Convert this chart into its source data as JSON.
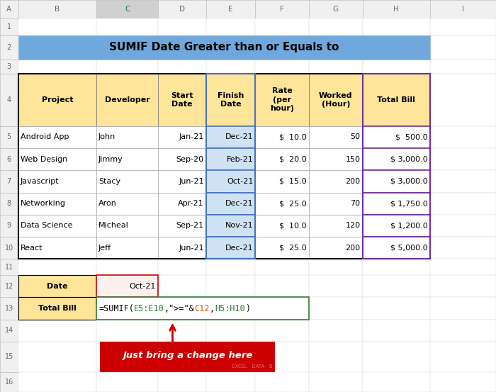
{
  "title": "SUMIF Date Greater than or Equals to",
  "title_bg": "#6fa8dc",
  "header_bg": "#ffe599",
  "header_cols": [
    "Project",
    "Developer",
    "Start\nDate",
    "Finish\nDate",
    "Rate\n(per\nhour)",
    "Worked\n(Hour)",
    "Total Bill"
  ],
  "data_rows": [
    [
      "Android App",
      "John",
      "Jan-21",
      "Dec-21",
      "$  10.0",
      "50",
      "$  500.0"
    ],
    [
      "Web Design",
      "Jimmy",
      "Sep-20",
      "Feb-21",
      "$  20.0",
      "150",
      "$ 3,000.0"
    ],
    [
      "Javascript",
      "Stacy",
      "Jun-21",
      "Oct-21",
      "$  15.0",
      "200",
      "$ 3,000.0"
    ],
    [
      "Networking",
      "Aron",
      "Apr-21",
      "Dec-21",
      "$  25.0",
      "70",
      "$ 1,750.0"
    ],
    [
      "Data Science",
      "Micheal",
      "Sep-21",
      "Nov-21",
      "$  10.0",
      "120",
      "$ 1,200.0"
    ],
    [
      "React",
      "Jeff",
      "Jun-21",
      "Dec-21",
      "$  25.0",
      "200",
      "$ 5,000.0"
    ]
  ],
  "summary_labels": [
    "Date",
    "Total Bill"
  ],
  "date_value": "Oct-21",
  "annotation_text": "Just bring a change here",
  "annotation_bg": "#cc0000",
  "annotation_text_color": "#ffffff",
  "cell_bg_light_blue": "#cfe2f3",
  "border_blue": "#4472c4",
  "border_purple": "#7030a0",
  "border_red": "#cc0000",
  "border_green": "#2e7d32",
  "col_letters": [
    "A",
    "B",
    "C",
    "D",
    "E",
    "F",
    "G",
    "H",
    "I"
  ],
  "formula_parts": [
    [
      "=SUMIF(",
      "#000000"
    ],
    [
      "E5:E10",
      "#2e7d32"
    ],
    [
      ",\">=\"&",
      "#000000"
    ],
    [
      "C12",
      "#e65100"
    ],
    [
      ",",
      "#000000"
    ],
    [
      "H5:H10",
      "#2e7d32"
    ],
    [
      ")",
      "#000000"
    ]
  ]
}
